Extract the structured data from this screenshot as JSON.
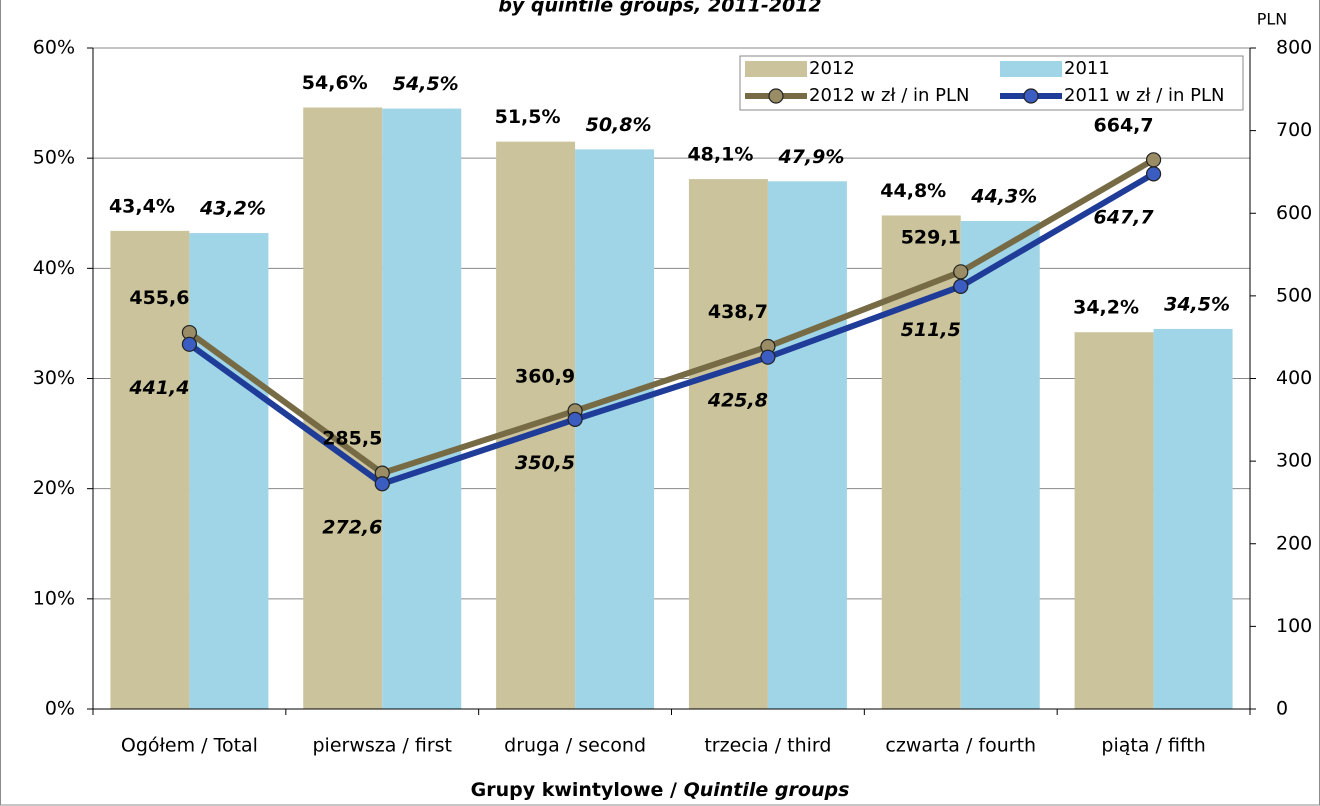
{
  "chart_data": {
    "type": "bar_line",
    "subtitle": "by quintile groups, 2011-2012",
    "x_label": {
      "main": "Grupy kwintylowe /",
      "italic": "Quintile groups"
    },
    "y2_label": "PLN",
    "categories": [
      "Ogółem / Total",
      "pierwsza / first",
      "druga / second",
      "trzecia / third",
      "czwarta / fourth",
      "piąta / fifth"
    ],
    "series": [
      {
        "name": "2012",
        "kind": "bar",
        "color": "#cbc39c",
        "values": [
          43.4,
          54.6,
          51.5,
          48.1,
          44.8,
          34.2
        ],
        "value_labels": [
          "43,4%",
          "54,6%",
          "51,5%",
          "48,1%",
          "44,8%",
          "34,2%"
        ]
      },
      {
        "name": "2011",
        "kind": "bar",
        "color": "#9fd5e6",
        "values": [
          43.2,
          54.5,
          50.8,
          47.9,
          44.3,
          34.5
        ],
        "value_labels": [
          "43,2%",
          "54,5%",
          "50,8%",
          "47,9%",
          "44,3%",
          "34,5%"
        ]
      },
      {
        "name": "2012 w zł / in PLN",
        "kind": "line",
        "axis": "y2",
        "color": "#776b45",
        "marker_color": "#9a8d66",
        "values": [
          455.6,
          285.5,
          360.9,
          438.7,
          529.1,
          664.7
        ],
        "value_labels": [
          "455,6",
          "285,5",
          "360,9",
          "438,7",
          "529,1",
          "664,7"
        ]
      },
      {
        "name": "2011 w zł / in PLN",
        "kind": "line",
        "axis": "y2",
        "color": "#1f3c99",
        "marker_color": "#3b5cc0",
        "values": [
          441.4,
          272.6,
          350.5,
          425.8,
          511.5,
          647.7
        ],
        "value_labels": [
          "441,4",
          "272,6",
          "350,5",
          "425,8",
          "511,5",
          "647,7"
        ]
      }
    ],
    "ylim": [
      0,
      60
    ],
    "yticks": [
      {
        "value": 0,
        "label": "0%"
      },
      {
        "value": 10,
        "label": "10%"
      },
      {
        "value": 20,
        "label": "20%"
      },
      {
        "value": 30,
        "label": "30%"
      },
      {
        "value": 40,
        "label": "40%"
      },
      {
        "value": 50,
        "label": "50%"
      },
      {
        "value": 60,
        "label": "60%"
      }
    ],
    "y2lim": [
      0,
      800
    ],
    "y2ticks": [
      0,
      100,
      200,
      300,
      400,
      500,
      600,
      700,
      800
    ],
    "grid": true
  }
}
